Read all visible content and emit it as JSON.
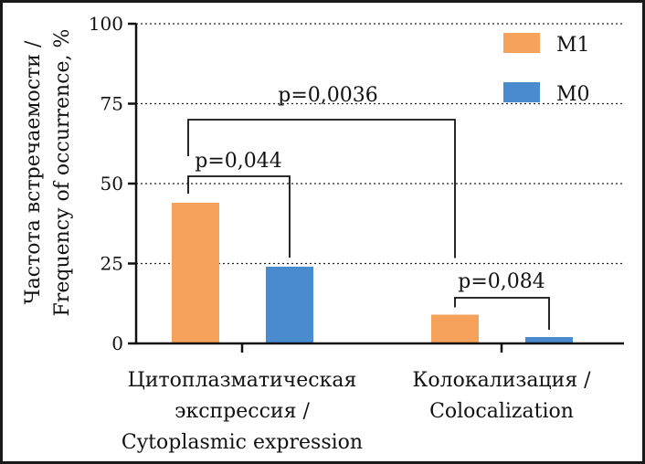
{
  "chart_data": {
    "type": "bar",
    "ylabel_line1": "Частота встречаемости /",
    "ylabel_line2": "Frequency of occurrence, %",
    "ylim": [
      0,
      100
    ],
    "yticks": [
      "0",
      "25",
      "50",
      "75",
      "100"
    ],
    "ytick_values": [
      0,
      25,
      50,
      75,
      100
    ],
    "grid": true,
    "legend_position": "top-right",
    "categories": [
      {
        "lines": [
          "Цитоплазматическая",
          "экспрессия /",
          "Cytoplasmic expression"
        ]
      },
      {
        "lines": [
          "Колокализация /",
          "Colocalization"
        ]
      }
    ],
    "series": [
      {
        "name": "M1",
        "color": "#f7a25a",
        "values": [
          44,
          9
        ]
      },
      {
        "name": "M0",
        "color": "#4a8bd0",
        "values": [
          24,
          2
        ]
      }
    ],
    "annotations": [
      {
        "text": "p=0,044",
        "from": "M1@0",
        "to": "M0@0"
      },
      {
        "text": "p=0,0036",
        "from": "M1@0",
        "to": "M1@1"
      },
      {
        "text": "p=0,084",
        "from": "M1@1",
        "to": "M0@1"
      }
    ]
  }
}
